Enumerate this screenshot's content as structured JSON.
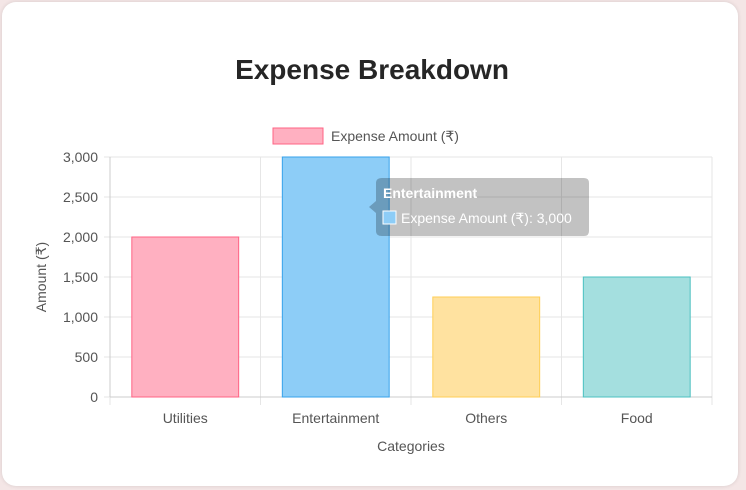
{
  "chart_data": {
    "type": "bar",
    "title": "Expense Breakdown",
    "xlabel": "Categories",
    "ylabel": "Amount (₹)",
    "categories": [
      "Utilities",
      "Entertainment",
      "Others",
      "Food"
    ],
    "series": [
      {
        "name": "Expense Amount (₹)",
        "values": [
          2000,
          3000,
          1250,
          1500
        ]
      }
    ],
    "ylim": [
      0,
      3000
    ],
    "yticks": [
      "0",
      "500",
      "1,000",
      "1,500",
      "2,000",
      "2,500",
      "3,000"
    ],
    "grid": true,
    "legend_position": "top",
    "colors": {
      "fills": [
        "#ffb0c1",
        "#8dcdf7",
        "#ffe2a0",
        "#a4dfdf"
      ],
      "borders": [
        "#ff6384",
        "#36a2eb",
        "#ffce56",
        "#4bc0c0"
      ],
      "legend_fill": "#ffb0c1",
      "legend_border": "#ff6384"
    },
    "tooltip": {
      "title": "Entertainment",
      "body": "Expense Amount (₹): 3,000"
    }
  }
}
